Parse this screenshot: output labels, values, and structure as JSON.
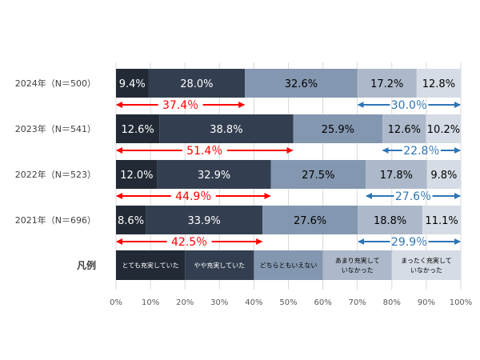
{
  "chart_data": {
    "type": "bar",
    "stacked": true,
    "orientation": "horizontal",
    "categories": [
      "2024年（N＝500）",
      "2023年（N＝541）",
      "2022年（N＝523）",
      "2021年（N＝696）"
    ],
    "series": [
      {
        "name": "とても充実していた",
        "color": "#222a35",
        "values": [
          9.4,
          12.6,
          12.0,
          8.6
        ],
        "labels": [
          "9.4%",
          "12.6%",
          "12.0%",
          "8.6%"
        ]
      },
      {
        "name": "やや充実していた",
        "color": "#333f50",
        "values": [
          28.0,
          38.8,
          32.9,
          33.9
        ],
        "labels": [
          "28.0%",
          "38.8%",
          "32.9%",
          "33.9%"
        ]
      },
      {
        "name": "どちらともいえない",
        "color": "#8497b0",
        "values": [
          32.6,
          25.9,
          27.5,
          27.6
        ],
        "labels": [
          "32.6%",
          "25.9%",
          "27.5%",
          "27.6%"
        ]
      },
      {
        "name": "あまり充実していなかった",
        "color": "#adb9ca",
        "values": [
          17.2,
          12.6,
          17.8,
          18.8
        ],
        "labels": [
          "17.2%",
          "12.6%",
          "17.8%",
          "18.8%"
        ]
      },
      {
        "name": "まったく充実していなかった",
        "color": "#d6dce5",
        "values": [
          12.8,
          10.2,
          9.8,
          11.1
        ],
        "labels": [
          "12.8%",
          "10.2%",
          "9.8%",
          "11.1%"
        ]
      }
    ],
    "positive_totals": {
      "color": "#ff0000",
      "values": [
        37.4,
        51.4,
        44.9,
        42.5
      ],
      "labels": [
        "37.4％",
        "51.4％",
        "44.9％",
        "42.5％"
      ]
    },
    "negative_totals": {
      "color": "#2e75b6",
      "values": [
        30.0,
        22.8,
        27.6,
        29.9
      ],
      "labels": [
        "30.0％",
        "22.8％",
        "27.6％",
        "29.9％"
      ]
    },
    "legend": {
      "title": "凡例",
      "items": [
        {
          "lines": [
            "とても充実していた"
          ],
          "color": "#222a35",
          "text_color": "#ffffff"
        },
        {
          "lines": [
            "やや充実していた"
          ],
          "color": "#333f50",
          "text_color": "#ffffff"
        },
        {
          "lines": [
            "どちらともいえない"
          ],
          "color": "#8497b0",
          "text_color": "#000000"
        },
        {
          "lines": [
            "あまり充実して",
            "いなかった"
          ],
          "color": "#adb9ca",
          "text_color": "#000000"
        },
        {
          "lines": [
            "まったく充実して",
            "いなかった"
          ],
          "color": "#d6dce5",
          "text_color": "#000000"
        }
      ]
    },
    "xlim": [
      0,
      100
    ],
    "xticks": [
      0,
      10,
      20,
      30,
      40,
      50,
      60,
      70,
      80,
      90,
      100
    ],
    "xtick_labels": [
      "0%",
      "10%",
      "20%",
      "30%",
      "40%",
      "50%",
      "60%",
      "70%",
      "80%",
      "90%",
      "100%"
    ],
    "grid": true
  }
}
